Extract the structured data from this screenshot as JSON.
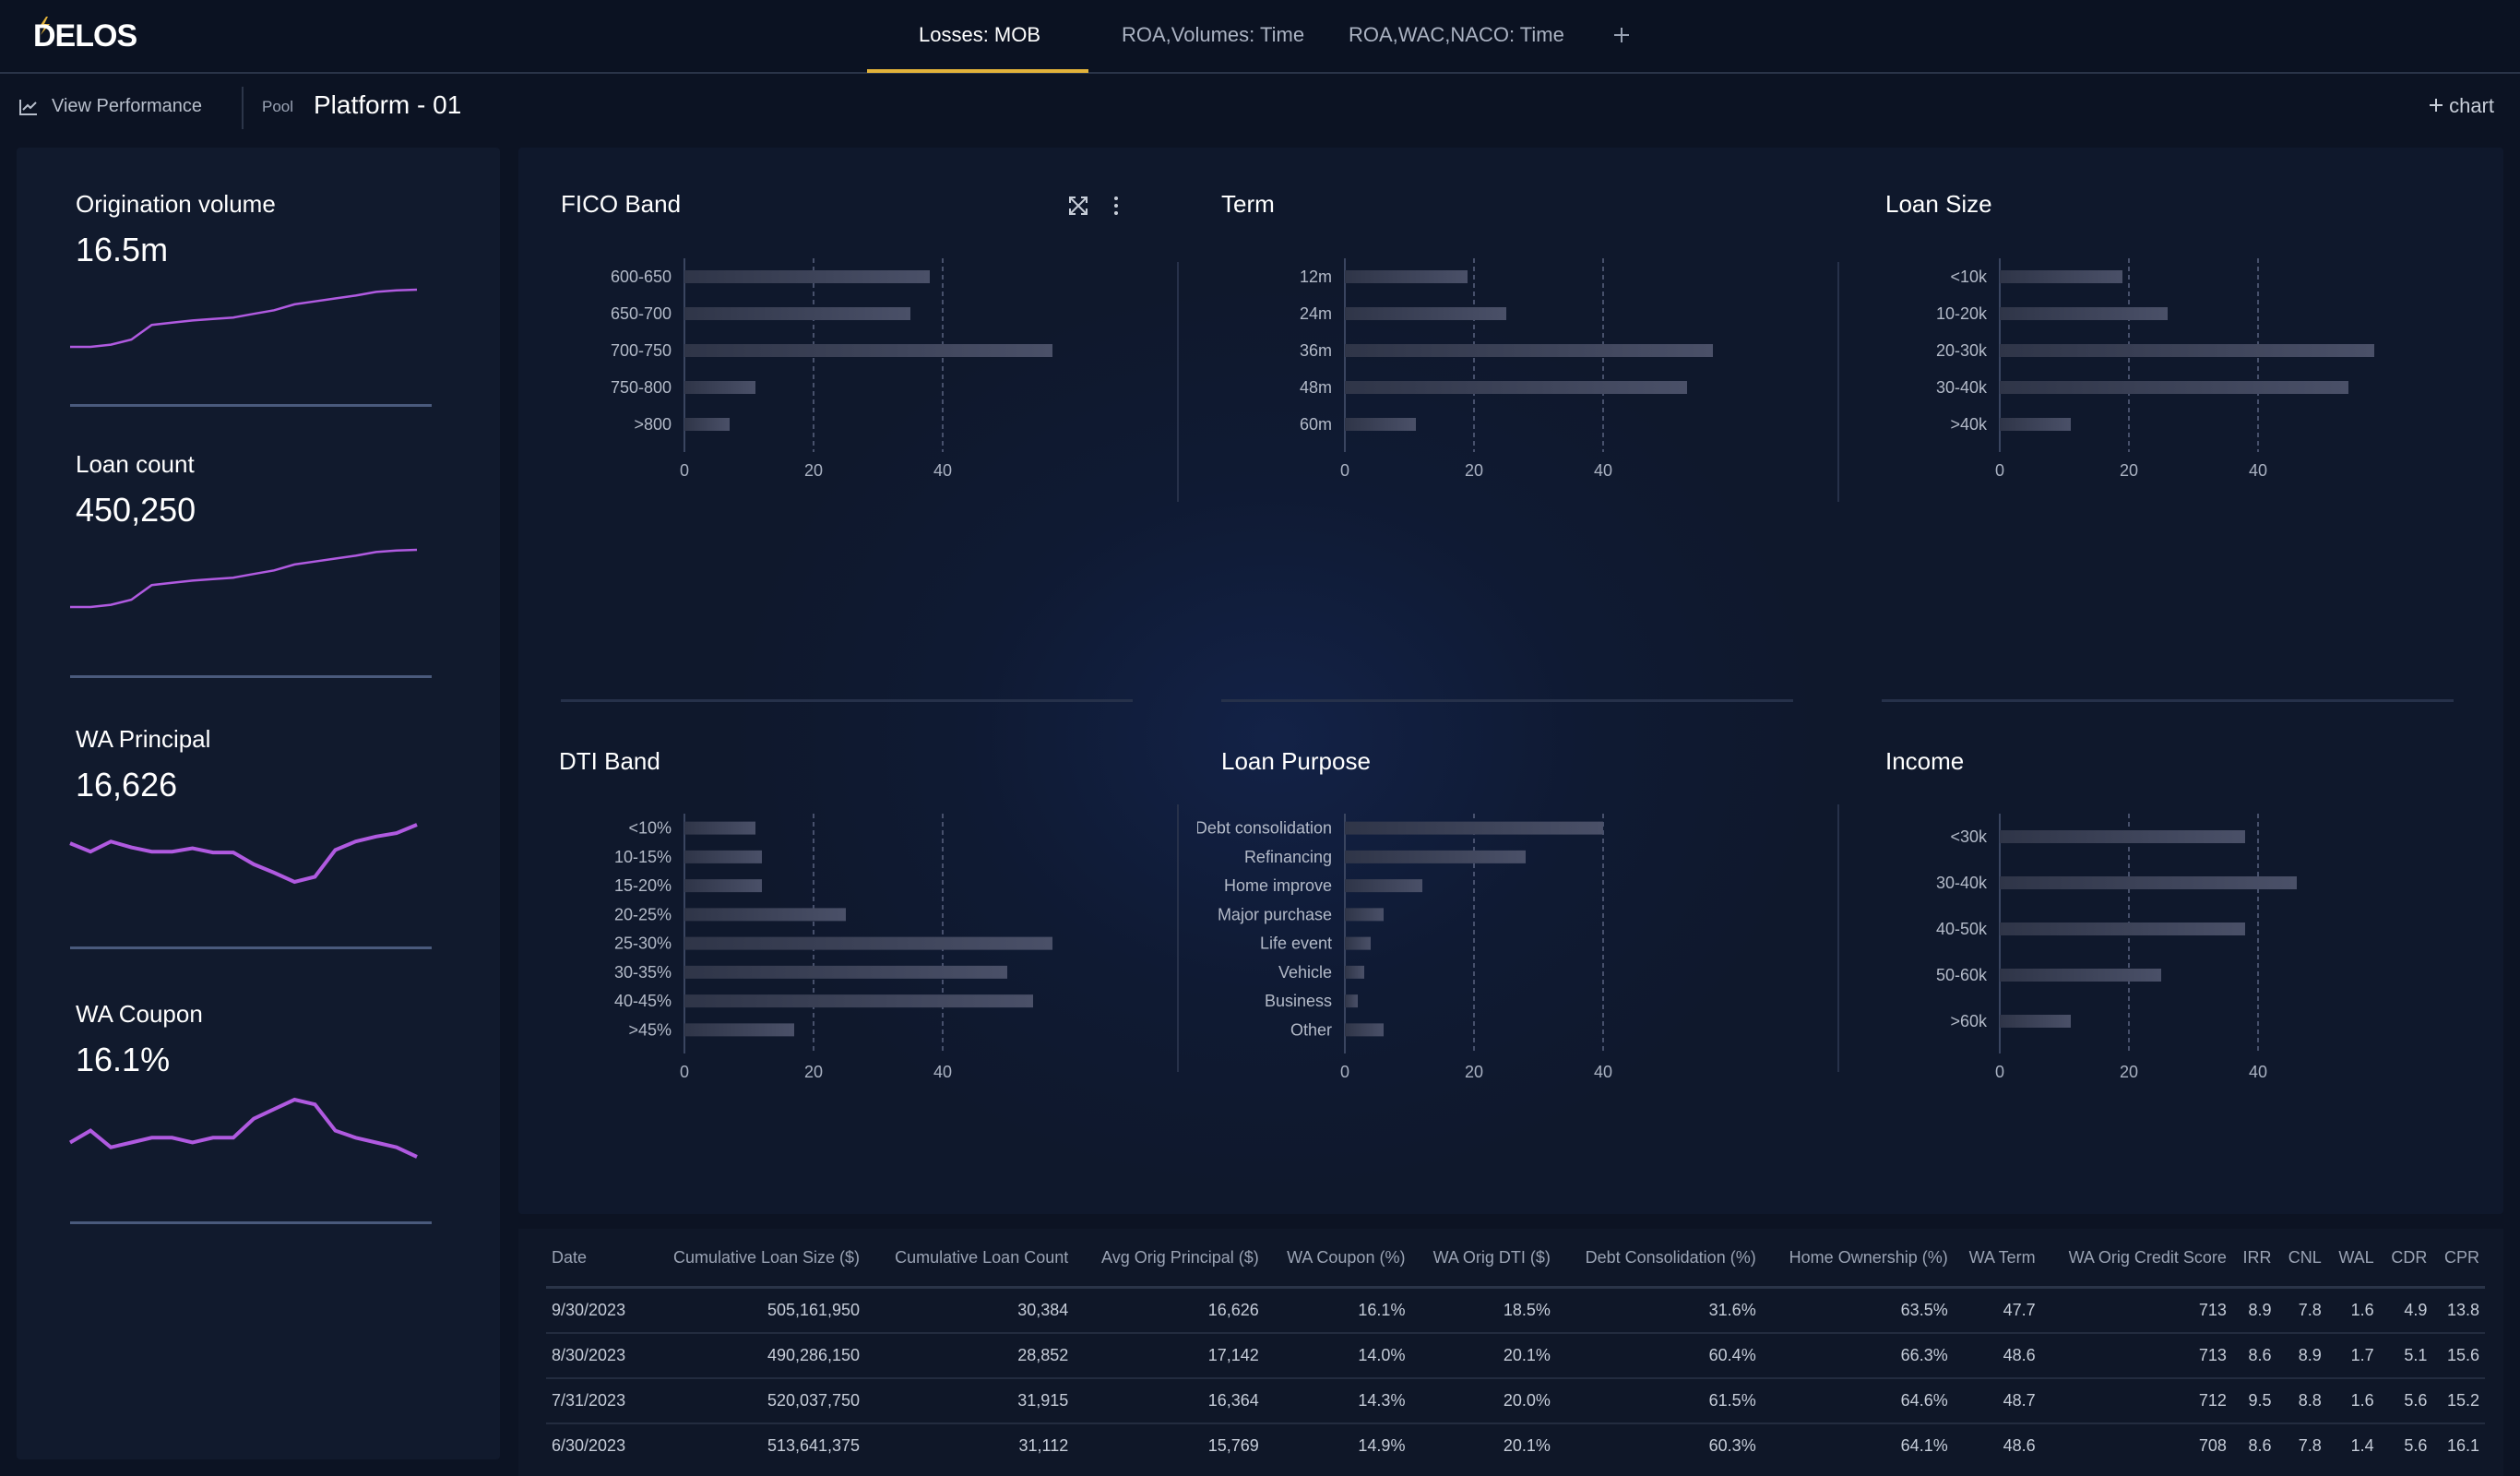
{
  "app": {
    "logo_text": "DELOS",
    "accent": "#e2b23a",
    "sparkline_color": "#b05ae0",
    "bar_color": "#4a5068"
  },
  "tabs": [
    {
      "label": "Losses: MOB",
      "active": true
    },
    {
      "label": "ROA,Volumes: Time",
      "active": false
    },
    {
      "label": "ROA,WAC,NACO: Time",
      "active": false
    }
  ],
  "tab_add_icon": "plus-icon",
  "subbar": {
    "view_performance": "View Performance",
    "pool_label": "Pool",
    "pool_name": "Platform - 01",
    "add_chart": "chart"
  },
  "metrics": [
    {
      "title": "Origination volume",
      "value": "16.5m",
      "series": [
        0,
        0,
        3,
        10,
        30,
        33,
        36,
        38,
        40,
        45,
        50,
        58,
        62,
        66,
        70,
        75,
        77,
        78
      ]
    },
    {
      "title": "Loan count",
      "value": "450,250",
      "series": [
        0,
        0,
        3,
        10,
        30,
        33,
        36,
        38,
        40,
        45,
        50,
        58,
        62,
        66,
        70,
        75,
        77,
        78
      ]
    },
    {
      "title": "WA Principal",
      "value": "16,626",
      "series": [
        60,
        50,
        62,
        55,
        50,
        50,
        54,
        49,
        49,
        35,
        25,
        14,
        20,
        52,
        62,
        68,
        72,
        82
      ]
    },
    {
      "title": "WA Coupon",
      "value": "16.1%",
      "series": [
        50,
        55,
        48,
        50,
        52,
        52,
        50,
        52,
        52,
        60,
        64,
        68,
        66,
        55,
        52,
        50,
        48,
        44
      ]
    }
  ],
  "chart_data": [
    {
      "type": "bar",
      "orientation": "horizontal",
      "title": "FICO Band",
      "categories": [
        "600-650",
        "650-700",
        "700-750",
        "750-800",
        ">800"
      ],
      "values": [
        38,
        35,
        57,
        11,
        7
      ],
      "xlim": [
        0,
        60
      ],
      "xticks": [
        0,
        20,
        40
      ]
    },
    {
      "type": "bar",
      "orientation": "horizontal",
      "title": "Term",
      "categories": [
        "12m",
        "24m",
        "36m",
        "48m",
        "60m"
      ],
      "values": [
        19,
        25,
        57,
        53,
        11
      ],
      "xlim": [
        0,
        60
      ],
      "xticks": [
        0,
        20,
        40
      ]
    },
    {
      "type": "bar",
      "orientation": "horizontal",
      "title": "Loan Size",
      "categories": [
        "<10k",
        "10-20k",
        "20-30k",
        "30-40k",
        ">40k"
      ],
      "values": [
        19,
        26,
        58,
        54,
        11
      ],
      "xlim": [
        0,
        60
      ],
      "xticks": [
        0,
        20,
        40
      ]
    },
    {
      "type": "bar",
      "orientation": "horizontal",
      "title": "DTI Band",
      "categories": [
        "<10%",
        "10-15%",
        "15-20%",
        "20-25%",
        "25-30%",
        "30-35%",
        "40-45%",
        ">45%"
      ],
      "values": [
        11,
        12,
        12,
        25,
        57,
        50,
        54,
        17
      ],
      "xlim": [
        0,
        60
      ],
      "xticks": [
        0,
        20,
        40
      ]
    },
    {
      "type": "bar",
      "orientation": "horizontal",
      "title": "Loan Purpose",
      "categories": [
        "Debt consolidation",
        "Refinancing",
        "Home improve",
        "Major purchase",
        "Life event",
        "Vehicle",
        "Business",
        "Other"
      ],
      "values": [
        40,
        28,
        12,
        6,
        4,
        3,
        2,
        6
      ],
      "xlim": [
        0,
        60
      ],
      "xticks": [
        0,
        20,
        40
      ]
    },
    {
      "type": "bar",
      "orientation": "horizontal",
      "title": "Income",
      "categories": [
        "<30k",
        "30-40k",
        "40-50k",
        "50-60k",
        ">60k"
      ],
      "values": [
        38,
        46,
        38,
        25,
        11
      ],
      "xlim": [
        0,
        60
      ],
      "xticks": [
        0,
        20,
        40
      ]
    }
  ],
  "table": {
    "columns": [
      "Date",
      "Cumulative Loan Size ($)",
      "Cumulative Loan Count",
      "Avg Orig Principal ($)",
      "WA Coupon (%)",
      "WA Orig DTI ($)",
      "Debt Consolidation (%)",
      "Home Ownership (%)",
      "WA Term",
      "WA Orig Credit Score",
      "IRR",
      "CNL",
      "WAL",
      "CDR",
      "CPR"
    ],
    "rows": [
      [
        "9/30/2023",
        "505,161,950",
        "30,384",
        "16,626",
        "16.1%",
        "18.5%",
        "31.6%",
        "63.5%",
        "47.7",
        "713",
        "8.9",
        "7.8",
        "1.6",
        "4.9",
        "13.8"
      ],
      [
        "8/30/2023",
        "490,286,150",
        "28,852",
        "17,142",
        "14.0%",
        "20.1%",
        "60.4%",
        "66.3%",
        "48.6",
        "713",
        "8.6",
        "8.9",
        "1.7",
        "5.1",
        "15.6"
      ],
      [
        "7/31/2023",
        "520,037,750",
        "31,915",
        "16,364",
        "14.3%",
        "20.0%",
        "61.5%",
        "64.6%",
        "48.7",
        "712",
        "9.5",
        "8.8",
        "1.6",
        "5.6",
        "15.2"
      ],
      [
        "6/30/2023",
        "513,641,375",
        "31,112",
        "15,769",
        "14.9%",
        "20.1%",
        "60.3%",
        "64.1%",
        "48.6",
        "708",
        "8.6",
        "7.8",
        "1.4",
        "5.6",
        "16.1"
      ]
    ]
  }
}
